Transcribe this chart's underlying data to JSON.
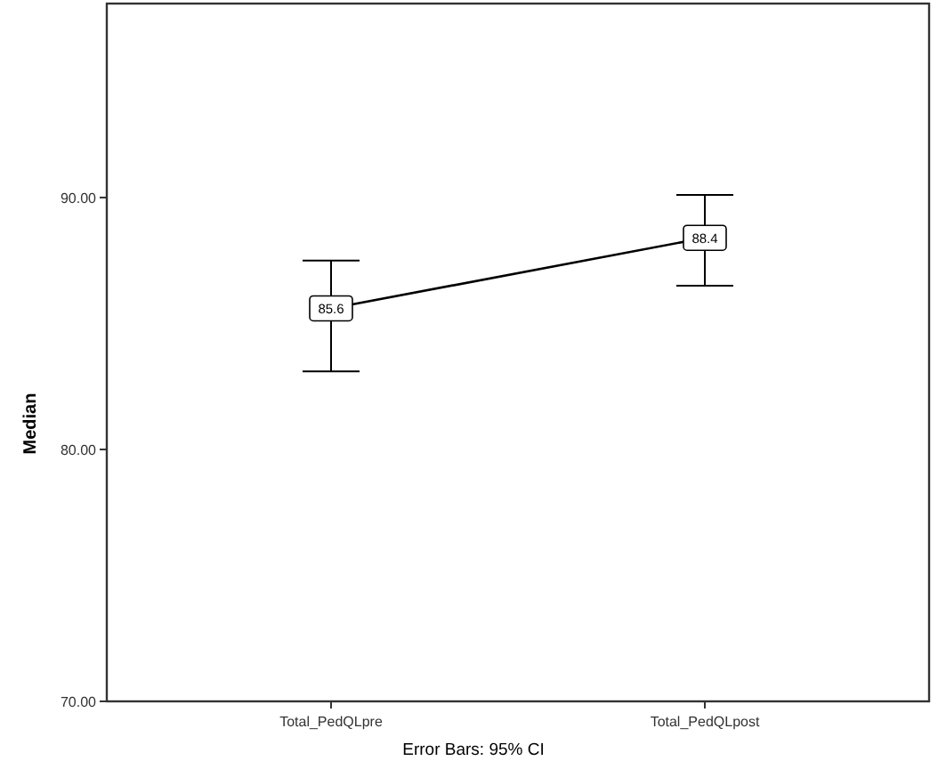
{
  "chart_data": {
    "type": "line",
    "xlabel": "Error Bars: 95% CI",
    "ylabel": "Median",
    "categories": [
      "Total_PedQLpre",
      "Total_PedQLpost"
    ],
    "series": [
      {
        "color": "#000000",
        "values": [
          85.6,
          88.4
        ],
        "errors": [
          [
            83.1,
            87.5
          ],
          [
            86.5,
            90.1
          ]
        ],
        "value_labels": [
          "85.6",
          "88.4"
        ]
      }
    ],
    "ylim": [
      70,
      97.7
    ],
    "yticks": [
      {
        "value": 70,
        "label": "70.00"
      },
      {
        "value": 80,
        "label": "80.00"
      },
      {
        "value": 90,
        "label": "90.00"
      }
    ],
    "grid": false,
    "marker": "square",
    "line_style": "solid"
  }
}
